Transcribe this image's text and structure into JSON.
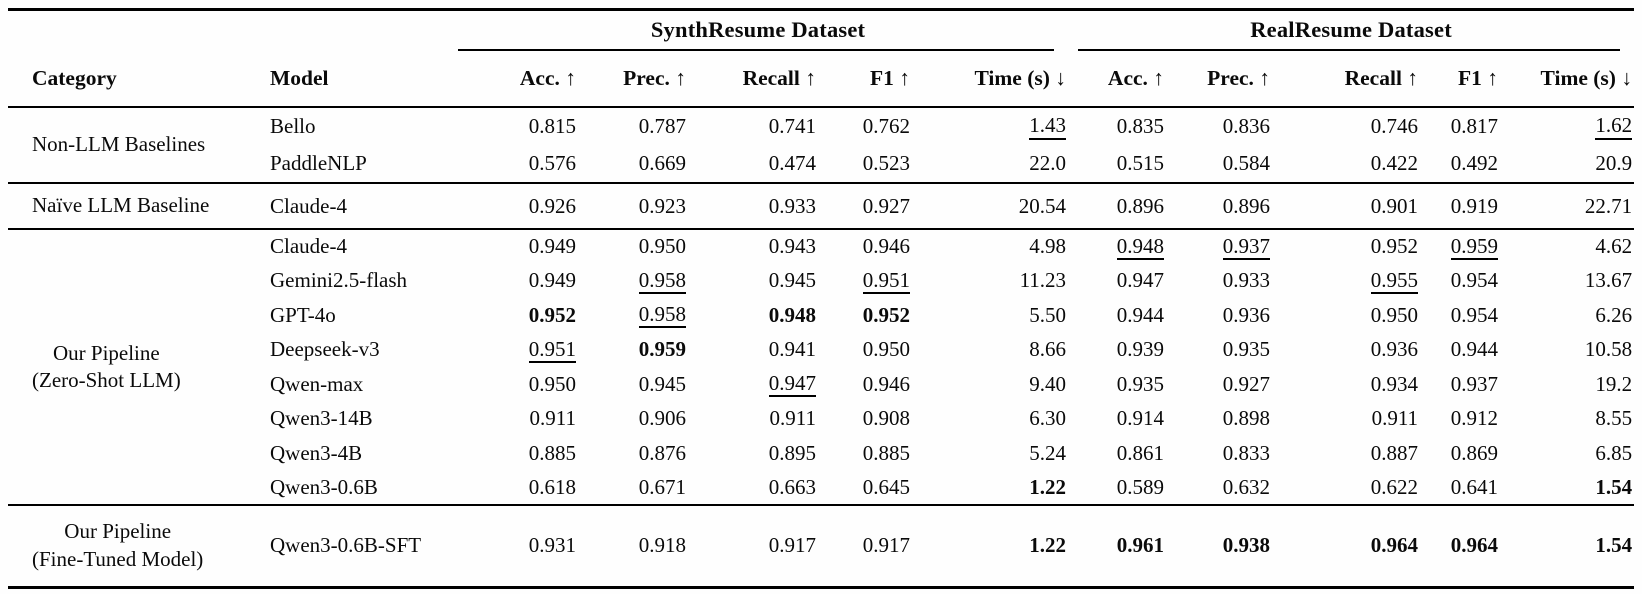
{
  "colors": {
    "text": "#0a0a0a",
    "background": "#fefefe",
    "rule": "#000000"
  },
  "table": {
    "group_headers": [
      {
        "label": "SynthResume Dataset"
      },
      {
        "label": "RealResume Dataset"
      }
    ],
    "columns": {
      "category": "Category",
      "model": "Model",
      "metrics": [
        "Acc. ↑",
        "Prec. ↑",
        "Recall ↑",
        "F1 ↑",
        "Time (s) ↓"
      ]
    },
    "sections": [
      {
        "category_lines": [
          "Non-LLM Baselines"
        ],
        "rows": [
          {
            "model": "Bello",
            "synth": [
              {
                "v": "0.815"
              },
              {
                "v": "0.787"
              },
              {
                "v": "0.741"
              },
              {
                "v": "0.762"
              },
              {
                "v": "1.43",
                "u": true
              }
            ],
            "real": [
              {
                "v": "0.835"
              },
              {
                "v": "0.836"
              },
              {
                "v": "0.746"
              },
              {
                "v": "0.817"
              },
              {
                "v": "1.62",
                "u": true
              }
            ]
          },
          {
            "model": "PaddleNLP",
            "synth": [
              {
                "v": "0.576"
              },
              {
                "v": "0.669"
              },
              {
                "v": "0.474"
              },
              {
                "v": "0.523"
              },
              {
                "v": "22.0"
              }
            ],
            "real": [
              {
                "v": "0.515"
              },
              {
                "v": "0.584"
              },
              {
                "v": "0.422"
              },
              {
                "v": "0.492"
              },
              {
                "v": "20.9"
              }
            ]
          }
        ]
      },
      {
        "category_lines": [
          "Naïve LLM Baseline"
        ],
        "rows": [
          {
            "model": "Claude-4",
            "synth": [
              {
                "v": "0.926"
              },
              {
                "v": "0.923"
              },
              {
                "v": "0.933"
              },
              {
                "v": "0.927"
              },
              {
                "v": "20.54"
              }
            ],
            "real": [
              {
                "v": "0.896"
              },
              {
                "v": "0.896"
              },
              {
                "v": "0.901"
              },
              {
                "v": "0.919"
              },
              {
                "v": "22.71"
              }
            ]
          }
        ]
      },
      {
        "category_lines": [
          "Our Pipeline",
          "(Zero-Shot LLM)"
        ],
        "rows": [
          {
            "model": "Claude-4",
            "synth": [
              {
                "v": "0.949"
              },
              {
                "v": "0.950"
              },
              {
                "v": "0.943"
              },
              {
                "v": "0.946"
              },
              {
                "v": "4.98"
              }
            ],
            "real": [
              {
                "v": "0.948",
                "u": true
              },
              {
                "v": "0.937",
                "u": true
              },
              {
                "v": "0.952"
              },
              {
                "v": "0.959",
                "u": true
              },
              {
                "v": "4.62"
              }
            ]
          },
          {
            "model": "Gemini2.5-flash",
            "synth": [
              {
                "v": "0.949"
              },
              {
                "v": "0.958",
                "u": true
              },
              {
                "v": "0.945"
              },
              {
                "v": "0.951",
                "u": true
              },
              {
                "v": "11.23"
              }
            ],
            "real": [
              {
                "v": "0.947"
              },
              {
                "v": "0.933"
              },
              {
                "v": "0.955",
                "u": true
              },
              {
                "v": "0.954"
              },
              {
                "v": "13.67"
              }
            ]
          },
          {
            "model": "GPT-4o",
            "synth": [
              {
                "v": "0.952",
                "b": true
              },
              {
                "v": "0.958",
                "u": true
              },
              {
                "v": "0.948",
                "b": true
              },
              {
                "v": "0.952",
                "b": true
              },
              {
                "v": "5.50"
              }
            ],
            "real": [
              {
                "v": "0.944"
              },
              {
                "v": "0.936"
              },
              {
                "v": "0.950"
              },
              {
                "v": "0.954"
              },
              {
                "v": "6.26"
              }
            ]
          },
          {
            "model": "Deepseek-v3",
            "synth": [
              {
                "v": "0.951",
                "u": true
              },
              {
                "v": "0.959",
                "b": true
              },
              {
                "v": "0.941"
              },
              {
                "v": "0.950"
              },
              {
                "v": "8.66"
              }
            ],
            "real": [
              {
                "v": "0.939"
              },
              {
                "v": "0.935"
              },
              {
                "v": "0.936"
              },
              {
                "v": "0.944"
              },
              {
                "v": "10.58"
              }
            ]
          },
          {
            "model": "Qwen-max",
            "synth": [
              {
                "v": "0.950"
              },
              {
                "v": "0.945"
              },
              {
                "v": "0.947",
                "u": true
              },
              {
                "v": "0.946"
              },
              {
                "v": "9.40"
              }
            ],
            "real": [
              {
                "v": "0.935"
              },
              {
                "v": "0.927"
              },
              {
                "v": "0.934"
              },
              {
                "v": "0.937"
              },
              {
                "v": "19.2"
              }
            ]
          },
          {
            "model": "Qwen3-14B",
            "synth": [
              {
                "v": "0.911"
              },
              {
                "v": "0.906"
              },
              {
                "v": "0.911"
              },
              {
                "v": "0.908"
              },
              {
                "v": "6.30"
              }
            ],
            "real": [
              {
                "v": "0.914"
              },
              {
                "v": "0.898"
              },
              {
                "v": "0.911"
              },
              {
                "v": "0.912"
              },
              {
                "v": "8.55"
              }
            ]
          },
          {
            "model": "Qwen3-4B",
            "synth": [
              {
                "v": "0.885"
              },
              {
                "v": "0.876"
              },
              {
                "v": "0.895"
              },
              {
                "v": "0.885"
              },
              {
                "v": "5.24"
              }
            ],
            "real": [
              {
                "v": "0.861"
              },
              {
                "v": "0.833"
              },
              {
                "v": "0.887"
              },
              {
                "v": "0.869"
              },
              {
                "v": "6.85"
              }
            ]
          },
          {
            "model": "Qwen3-0.6B",
            "synth": [
              {
                "v": "0.618"
              },
              {
                "v": "0.671"
              },
              {
                "v": "0.663"
              },
              {
                "v": "0.645"
              },
              {
                "v": "1.22",
                "b": true
              }
            ],
            "real": [
              {
                "v": "0.589"
              },
              {
                "v": "0.632"
              },
              {
                "v": "0.622"
              },
              {
                "v": "0.641"
              },
              {
                "v": "1.54",
                "b": true
              }
            ]
          }
        ]
      },
      {
        "category_lines": [
          "Our Pipeline",
          "(Fine-Tuned Model)"
        ],
        "rows": [
          {
            "model": "Qwen3-0.6B-SFT",
            "synth": [
              {
                "v": "0.931"
              },
              {
                "v": "0.918"
              },
              {
                "v": "0.917"
              },
              {
                "v": "0.917"
              },
              {
                "v": "1.22",
                "b": true
              }
            ],
            "real": [
              {
                "v": "0.961",
                "b": true
              },
              {
                "v": "0.938",
                "b": true
              },
              {
                "v": "0.964",
                "b": true
              },
              {
                "v": "0.964",
                "b": true
              },
              {
                "v": "1.54",
                "b": true
              }
            ]
          }
        ]
      }
    ]
  }
}
